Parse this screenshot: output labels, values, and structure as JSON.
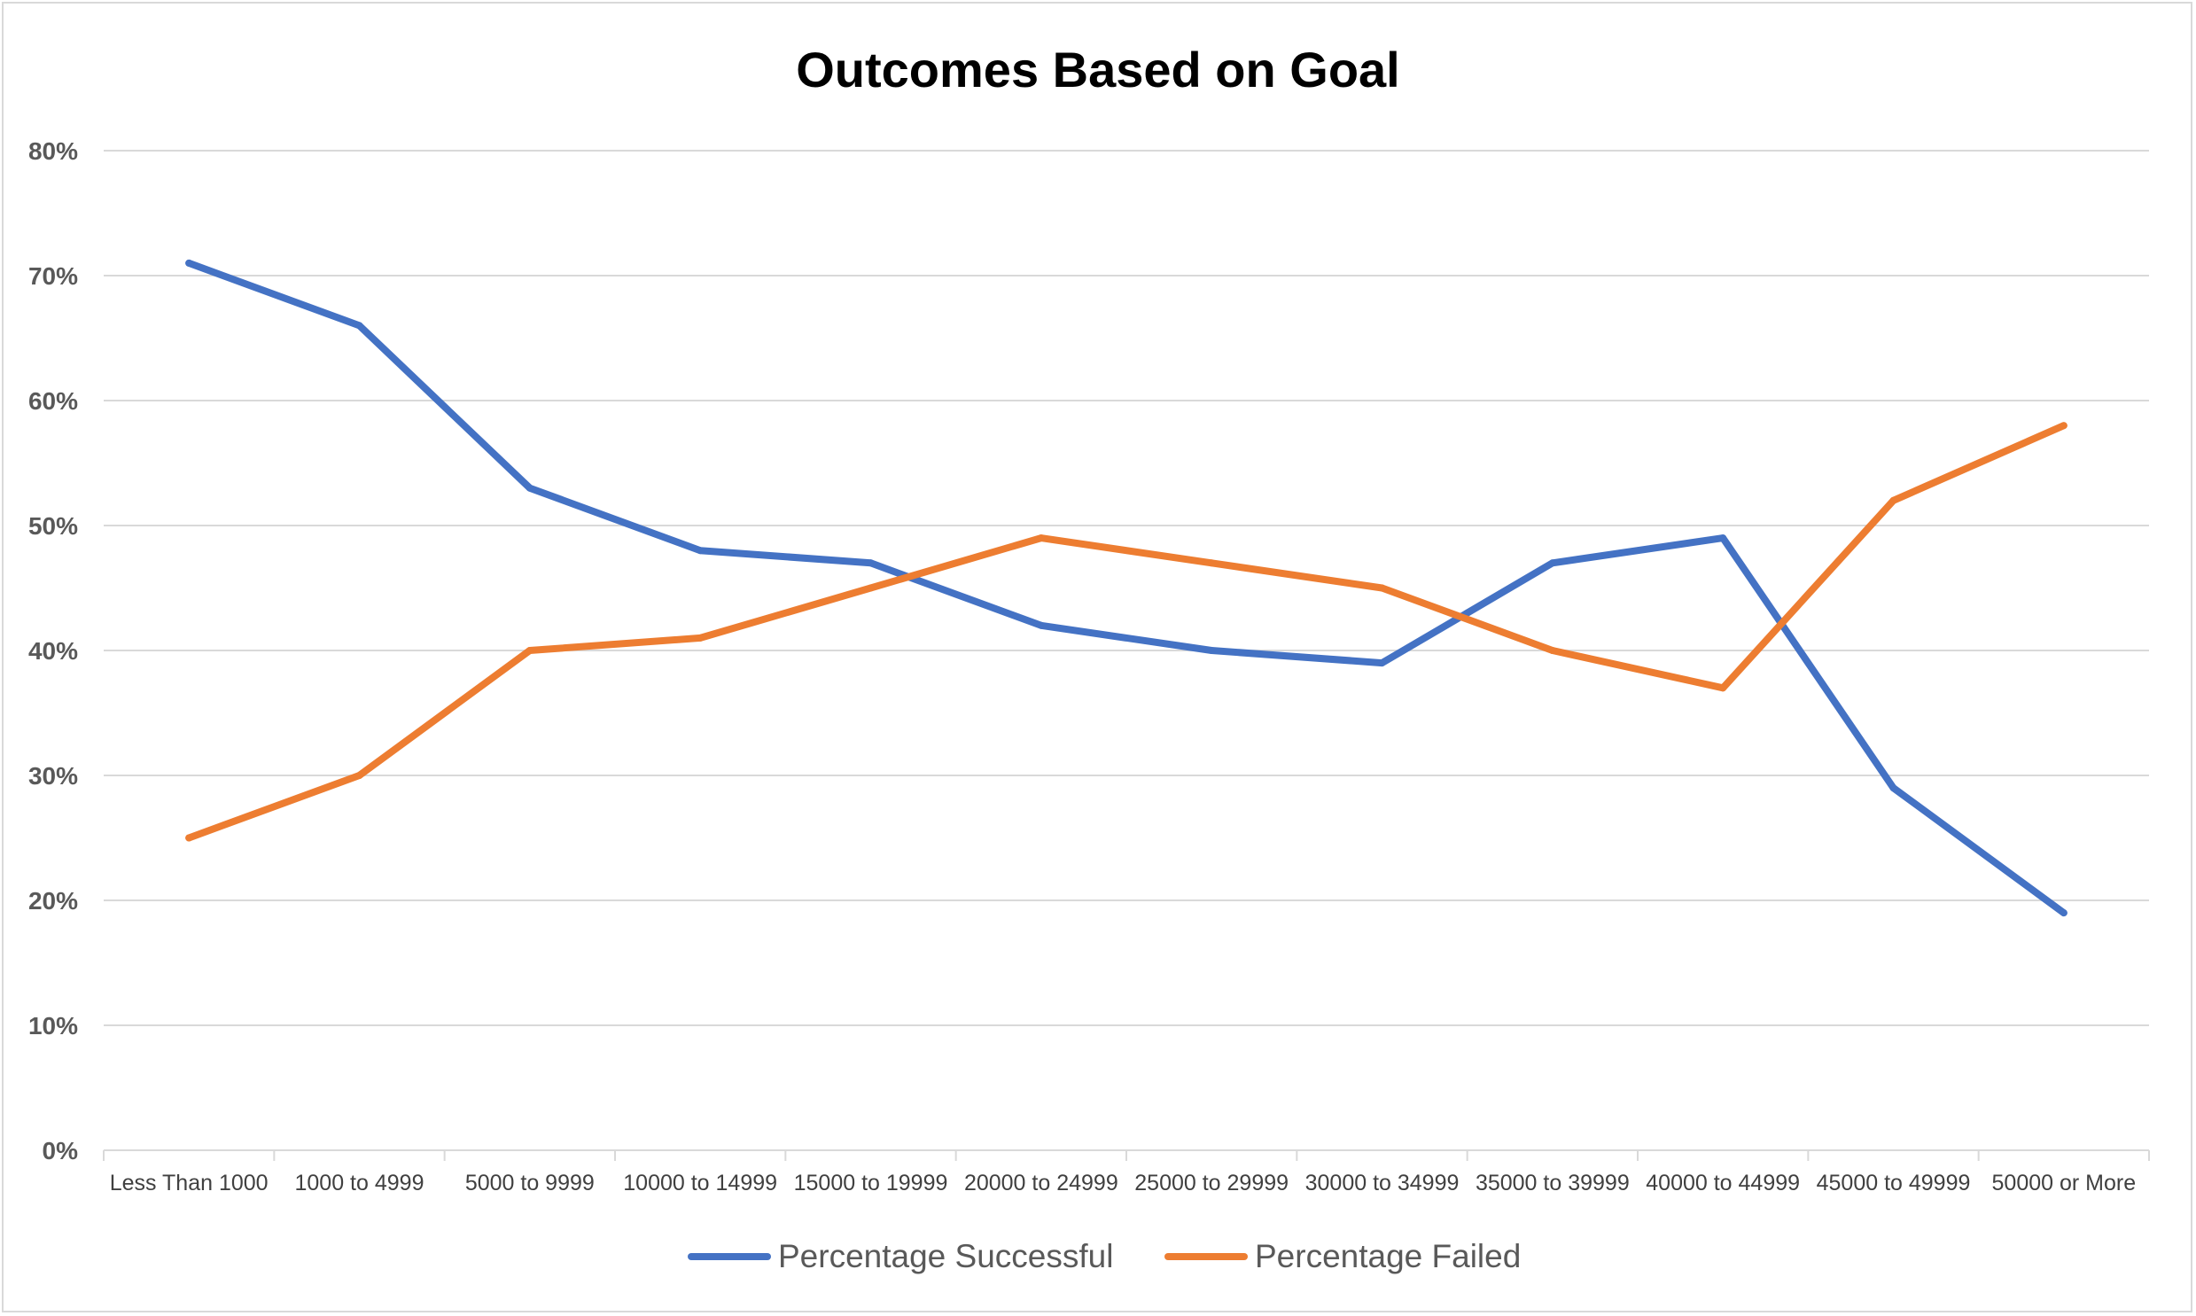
{
  "chart_data": {
    "type": "line",
    "title": "Outcomes Based on Goal",
    "xlabel": "",
    "ylabel": "",
    "categories": [
      "Less Than 1000",
      "1000 to 4999",
      "5000 to 9999",
      "10000 to 14999",
      "15000 to 19999",
      "20000 to 24999",
      "25000 to 29999",
      "30000 to 34999",
      "35000 to 39999",
      "40000 to 44999",
      "45000 to 49999",
      "50000 or More"
    ],
    "y_ticks": [
      "0%",
      "10%",
      "20%",
      "30%",
      "40%",
      "50%",
      "60%",
      "70%",
      "80%"
    ],
    "ylim": [
      0,
      80
    ],
    "y_unit": "%",
    "grid": true,
    "legend_position": "bottom",
    "series": [
      {
        "name": "Percentage Successful",
        "color": "#4472C4",
        "values": [
          71,
          66,
          53,
          48,
          47,
          42,
          40,
          39,
          47,
          49,
          29,
          19
        ]
      },
      {
        "name": "Percentage Failed",
        "color": "#ED7D31",
        "values": [
          25,
          30,
          40,
          41,
          45,
          49,
          47,
          45,
          40,
          37,
          52,
          58
        ]
      }
    ]
  }
}
